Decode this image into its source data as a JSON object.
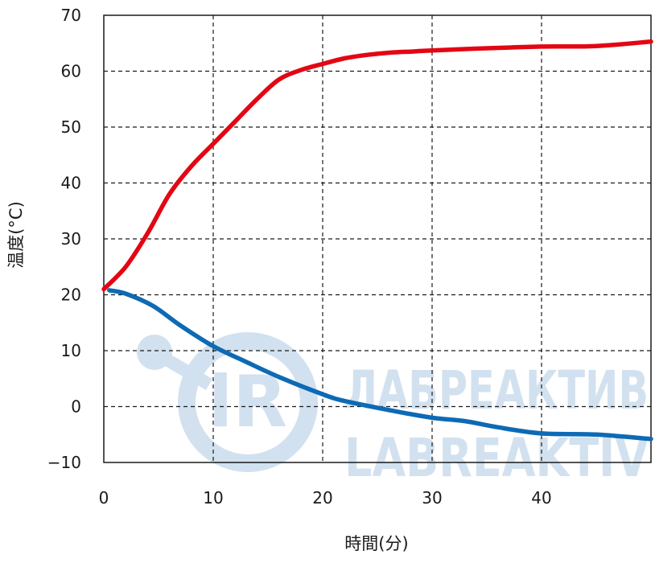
{
  "chart_data": {
    "type": "line",
    "xlabel": "時間(分)",
    "ylabel": "温度(°C)",
    "xlim": [
      0,
      50
    ],
    "ylim": [
      -10,
      70
    ],
    "xticks": [
      "0",
      "10",
      "20",
      "30",
      "40"
    ],
    "yticks": [
      "−10",
      "0",
      "10",
      "20",
      "30",
      "40",
      "50",
      "60",
      "70"
    ],
    "xtick_values": [
      0,
      10,
      20,
      30,
      40
    ],
    "ytick_values": [
      -10,
      0,
      10,
      20,
      30,
      40,
      50,
      60,
      70
    ],
    "grid": true,
    "series": [
      {
        "color": "#e30613",
        "x": [
          0,
          2,
          4,
          6,
          8,
          10,
          12,
          14,
          16,
          18,
          20,
          22,
          24,
          26,
          28,
          30,
          35,
          40,
          45,
          50
        ],
        "y": [
          21,
          25,
          31,
          38,
          43,
          47,
          51,
          55,
          58.5,
          60.2,
          61.3,
          62.3,
          62.9,
          63.3,
          63.5,
          63.7,
          64.1,
          64.4,
          64.5,
          65.3
        ]
      },
      {
        "color": "#0d6ab5",
        "x": [
          0.5,
          2,
          4.5,
          7,
          10,
          13,
          16,
          20,
          22,
          26,
          30,
          33,
          36,
          40,
          45,
          50
        ],
        "y": [
          20.8,
          20.2,
          18,
          14.5,
          10.8,
          8,
          5.3,
          2.2,
          1,
          -0.6,
          -2,
          -2.6,
          -3.7,
          -4.8,
          -5,
          -5.8
        ]
      }
    ]
  },
  "watermark": {
    "line1": "ЛАБРЕАКТИВ",
    "line2": "LABREAKTIV",
    "color": "#c4d7ea"
  }
}
